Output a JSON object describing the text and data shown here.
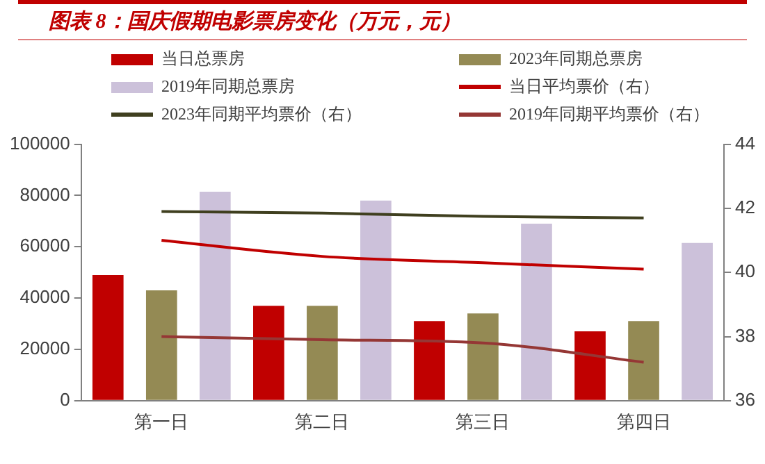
{
  "chart_data": {
    "type": "bar",
    "title": "图表 8：国庆假期电影票房变化（万元，元）",
    "categories": [
      "第一日",
      "第二日",
      "第三日",
      "第四日"
    ],
    "series": [
      {
        "name": "当日总票房",
        "color": "#c00000",
        "values": [
          49000,
          37000,
          31000,
          27000
        ]
      },
      {
        "name": "2023年同期总票房",
        "color": "#948a54",
        "values": [
          43000,
          37000,
          34000,
          31000
        ]
      },
      {
        "name": "2019年同期总票房",
        "color": "#ccc1da",
        "values": [
          81500,
          78000,
          69000,
          61500
        ]
      },
      {
        "name": "当日平均票价（右）",
        "type": "line",
        "axis": "y2",
        "color": "#c00000",
        "values": [
          41.0,
          40.5,
          40.3,
          40.1
        ]
      },
      {
        "name": "2023年同期平均票价（右）",
        "type": "line",
        "axis": "y2",
        "color": "#3f3f1f",
        "values": [
          41.9,
          41.85,
          41.75,
          41.7
        ]
      },
      {
        "name": "2019年同期平均票价（右）",
        "type": "line",
        "axis": "y2",
        "color": "#953735",
        "values": [
          38.0,
          37.9,
          37.8,
          37.2
        ]
      }
    ],
    "ylim": [
      0,
      100000
    ],
    "yticks": [
      0,
      20000,
      40000,
      60000,
      80000,
      100000
    ],
    "y2lim": [
      36,
      44
    ],
    "y2ticks": [
      36,
      38,
      40,
      42,
      44
    ],
    "grid": false,
    "legend": "top",
    "marker": "none"
  }
}
